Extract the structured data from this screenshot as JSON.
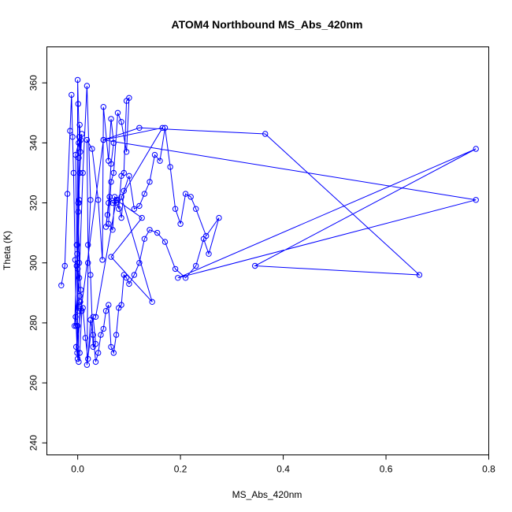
{
  "chart_data": {
    "type": "line",
    "title": "ATOM4 Northbound MS_Abs_420nm",
    "xlabel": "MS_Abs_420nm",
    "ylabel": "Theta (K)",
    "xlim": [
      -0.06,
      0.8
    ],
    "ylim": [
      236,
      372
    ],
    "xticks": [
      0.0,
      0.2,
      0.4,
      0.6,
      0.8
    ],
    "xtick_labels": [
      "0.0",
      "0.2",
      "0.4",
      "0.6",
      "0.8"
    ],
    "yticks": [
      240,
      260,
      280,
      300,
      320,
      340,
      360
    ],
    "ytick_labels": [
      "240",
      "260",
      "280",
      "300",
      "320",
      "340",
      "360"
    ],
    "grid": false,
    "legend": "none",
    "colors": {
      "series": "#0000ff"
    },
    "series": [
      {
        "marker": "open-circle",
        "x": [
          -0.032,
          -0.025,
          -0.02,
          -0.015,
          -0.012,
          -0.01,
          -0.008,
          -0.005,
          -0.003,
          -0.001,
          0.0,
          0.001,
          0.003,
          0.005,
          0.004,
          0.002,
          0.001,
          0.003,
          0.006,
          0.008,
          0.004,
          0.002,
          0.0,
          -0.001,
          -0.002,
          -0.004,
          0.002,
          0.003,
          0.0,
          0.001,
          0.004,
          0.0,
          -0.001,
          0.002,
          0.006,
          0.008,
          0.004,
          0.001,
          -0.002,
          -0.006,
          -0.004,
          0.003,
          0.01,
          0.018,
          0.025,
          0.02,
          0.018,
          0.03,
          0.035,
          0.03,
          0.025,
          0.02,
          0.018,
          0.028,
          0.04,
          0.048,
          0.05,
          0.06,
          0.065,
          0.07,
          0.065,
          0.06,
          0.055,
          0.058,
          0.062,
          0.068,
          0.075,
          0.08,
          0.085,
          0.09,
          0.095,
          0.1,
          0.095,
          0.085,
          0.078,
          0.07,
          0.065,
          0.06,
          0.068,
          0.072,
          0.078,
          0.085,
          0.09,
          0.1,
          0.11,
          0.12,
          0.13,
          0.14,
          0.15,
          0.16,
          0.17,
          0.18,
          0.19,
          0.2,
          0.21,
          0.22,
          0.23,
          0.25,
          0.275,
          0.255,
          0.245,
          0.23,
          0.21,
          0.19,
          0.17,
          0.155,
          0.14,
          0.13,
          0.12,
          0.11,
          0.1,
          0.095,
          0.09,
          0.085,
          0.08,
          0.075,
          0.07,
          0.065,
          0.06,
          0.055,
          0.05,
          0.045,
          0.04,
          0.035,
          0.03,
          0.025,
          0.02,
          0.015,
          0.01,
          0.005,
          0.0,
          -0.003,
          0.05,
          0.12,
          0.365,
          0.665,
          0.345,
          0.775,
          0.195,
          0.775,
          0.05,
          0.165,
          0.085,
          0.145,
          0.065,
          0.125,
          0.075,
          0.035
        ],
        "y": [
          292.5,
          299,
          323,
          344,
          356,
          342,
          330,
          301,
          279,
          270,
          361,
          353,
          342,
          337,
          346,
          335,
          320,
          300,
          291,
          284,
          270,
          267,
          279,
          303,
          306,
          336,
          340,
          321,
          298,
          284,
          289,
          300,
          306,
          320,
          341,
          343,
          330,
          317,
          299,
          279,
          282,
          295,
          330,
          359,
          321,
          300,
          266,
          282,
          273,
          272,
          296,
          306,
          341,
          338,
          321,
          301,
          352,
          334,
          348,
          340,
          333,
          320,
          312,
          316,
          322,
          320,
          320,
          318,
          329,
          330,
          354,
          355,
          337,
          347,
          350,
          330,
          327,
          313,
          311,
          322,
          321,
          315,
          324,
          329,
          318,
          319,
          323,
          327,
          336,
          334,
          345,
          332,
          318,
          313,
          323,
          322,
          318,
          309,
          315,
          303,
          308,
          299,
          295,
          298,
          307,
          310,
          311,
          308,
          300,
          296,
          293,
          295,
          296,
          286,
          285,
          276,
          270,
          272,
          286,
          284,
          278,
          276,
          270,
          267,
          276,
          281,
          268,
          275,
          285,
          287,
          268,
          272,
          341,
          345,
          343,
          296,
          299,
          338,
          295,
          321,
          341,
          345,
          322,
          287,
          302,
          315,
          321,
          282
        ]
      }
    ]
  }
}
